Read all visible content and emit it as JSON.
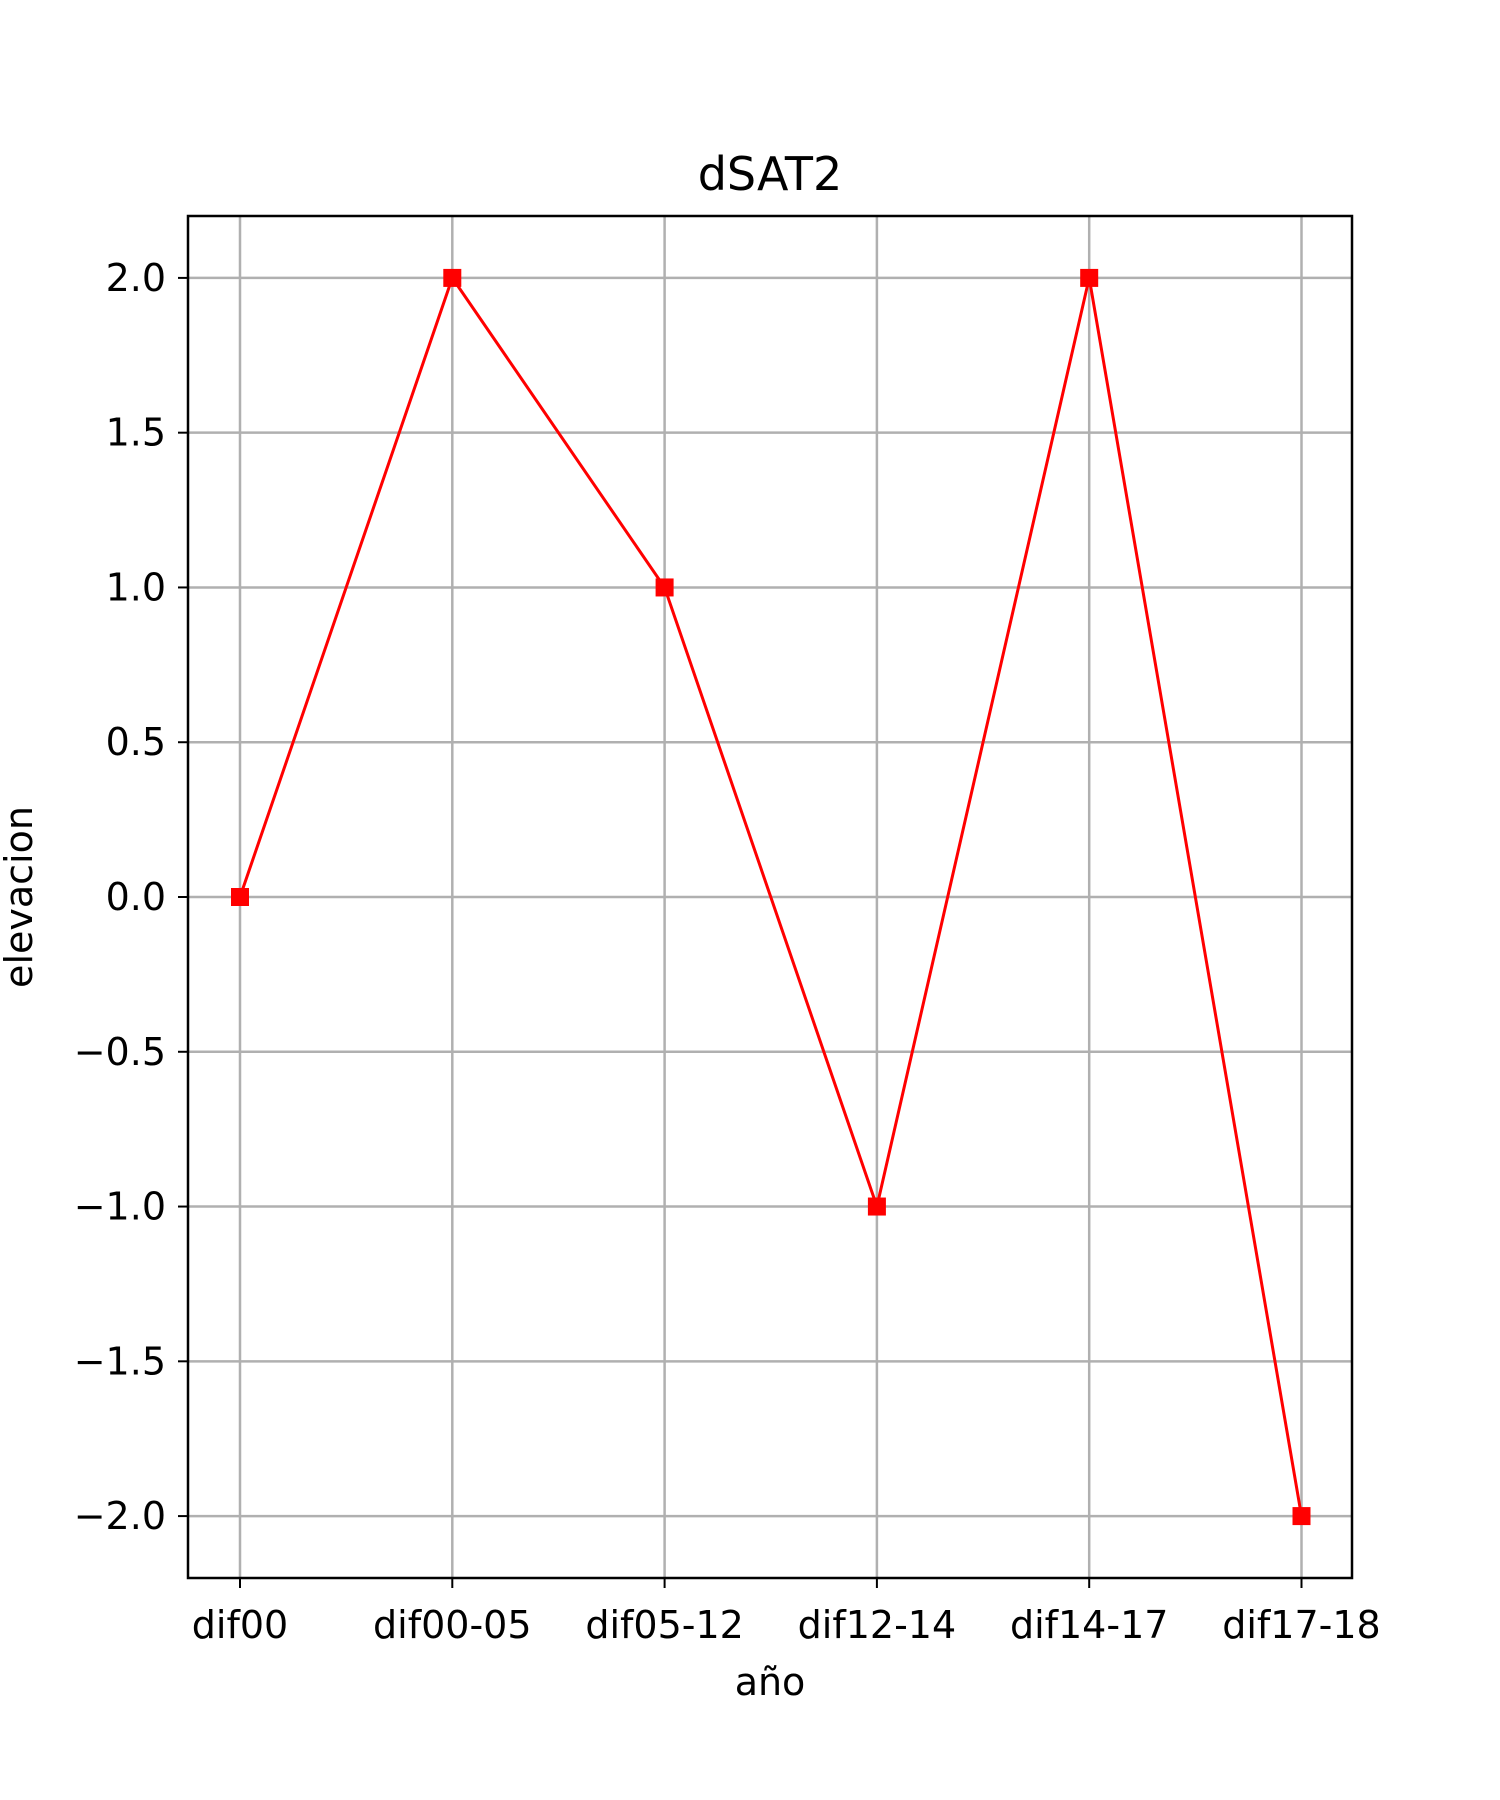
{
  "chart_data": {
    "type": "line",
    "title": "dSAT2",
    "xlabel": "año",
    "ylabel": "elevacion",
    "categories": [
      "dif00",
      "dif00-05",
      "dif05-12",
      "dif12-14",
      "dif14-17",
      "dif17-18"
    ],
    "series": [
      {
        "values": [
          0,
          2,
          1,
          -1,
          2,
          -2
        ],
        "color": "#ff0000",
        "marker": "square"
      }
    ],
    "ylim": [
      -2.2,
      2.2
    ],
    "yticks": [
      2.0,
      1.5,
      1.0,
      0.5,
      0.0,
      -0.5,
      -1.0,
      -1.5,
      -2.0
    ],
    "ytick_labels": [
      "2.0",
      "1.5",
      "1.0",
      "0.5",
      "0.0",
      "−0.5",
      "−1.0",
      "−1.5",
      "−2.0"
    ],
    "grid": true
  }
}
